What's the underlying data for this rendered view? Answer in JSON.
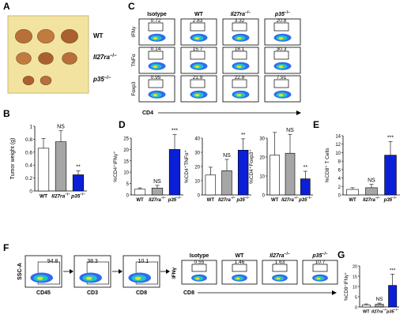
{
  "panels": {
    "A": {
      "letter": "A",
      "row_labels": [
        "WT",
        "Il27ra",
        "p35"
      ],
      "superscript": "−/−",
      "tumor_colors": [
        "#b8703a",
        "#c27b3f",
        "#a8612f"
      ]
    },
    "B": {
      "letter": "B",
      "ylabel": "Tumor weight (g)",
      "yticks": [
        "0",
        "0.2",
        "0.4",
        "0.6",
        "0.8",
        "1"
      ],
      "categories": [
        "WT",
        "Il27ra",
        "p35"
      ],
      "superscript": "−/−",
      "annotations": [
        "NS",
        "**"
      ]
    },
    "C": {
      "letter": "C",
      "col_headers": [
        "Isotype",
        "WT",
        "Il27ra",
        "p35"
      ],
      "superscript": "−/−",
      "row_labels": [
        "IFNγ",
        "TNFα",
        "Foxp3"
      ],
      "values": [
        [
          "0.72",
          "2.83",
          "3.32",
          "20.8"
        ],
        [
          "0.14",
          "15.7",
          "18.1",
          "30.3"
        ],
        [
          "0.95",
          "21.9",
          "22.8",
          "7.91"
        ]
      ],
      "xlabel": "CD4"
    },
    "D": {
      "letter": "D",
      "charts": [
        {
          "ylabel": "%CD4⁺IFNγ⁺",
          "yticks": [
            "0",
            "5",
            "10",
            "15",
            "20",
            "25"
          ],
          "annotations": [
            "NS",
            "***"
          ]
        },
        {
          "ylabel": "%CD4⁺TNFα⁺",
          "yticks": [
            "0",
            "10",
            "20",
            "30",
            "40"
          ],
          "annotations": [
            "NS",
            "**"
          ]
        },
        {
          "ylabel": "%CD4⁺Foxp3⁺",
          "yticks": [
            "0",
            "10",
            "20",
            "30"
          ],
          "annotations": [
            "NS",
            "**"
          ]
        }
      ],
      "categories": [
        "WT",
        "Il27ra",
        "p35"
      ],
      "superscript": "−/−"
    },
    "E": {
      "letter": "E",
      "ylabel": "%CD8⁺ T Cells",
      "yticks": [
        "0",
        "2",
        "4",
        "6",
        "8",
        "10",
        "12",
        "14"
      ],
      "categories": [
        "WT",
        "Il27ra",
        "p35"
      ],
      "superscript": "−/−",
      "annotations": [
        "NS",
        "***"
      ]
    },
    "F": {
      "letter": "F",
      "gating": [
        {
          "ylabel": "SSC-A",
          "xlabel": "CD45",
          "value": "94.8"
        },
        {
          "ylabel": "",
          "xlabel": "CD3",
          "value": "38.3"
        },
        {
          "ylabel": "",
          "xlabel": "CD8",
          "value": "10.1"
        }
      ],
      "ifn_label": "IFNγ",
      "col_headers": [
        "Isotype",
        "WT",
        "Il27ra",
        "p35"
      ],
      "superscript": "−/−",
      "values": [
        "0.55",
        "1.46",
        "1.63",
        "10.7"
      ],
      "xlabel": "CD8"
    },
    "G": {
      "letter": "G",
      "ylabel": "%CD8⁺IFNγ⁺",
      "yticks": [
        "0",
        "5",
        "10",
        "15",
        "20"
      ],
      "categories": [
        "WT",
        "Il27ra",
        "p35"
      ],
      "superscript": "−/−",
      "annotations": [
        "NS",
        "***"
      ]
    }
  },
  "colors": {
    "wt": "#ffffff",
    "il27ra": "#a6a6a6",
    "p35": "#0b1fd6",
    "contour_outer": "#2f6cf0",
    "contour_mid": "#22c4c4",
    "contour_inner": "#e8e020"
  },
  "chart_data": [
    {
      "type": "bar",
      "panel": "B",
      "ylabel": "Tumor weight (g)",
      "categories": [
        "WT",
        "Il27ra−/−",
        "p35−/−"
      ],
      "values": [
        0.66,
        0.76,
        0.25
      ],
      "errors": [
        0.15,
        0.17,
        0.06
      ],
      "ylim": [
        0,
        1
      ]
    },
    {
      "type": "bar",
      "panel": "D1",
      "ylabel": "%CD4⁺IFNγ⁺",
      "categories": [
        "WT",
        "Il27ra−/−",
        "p35−/−"
      ],
      "values": [
        2.5,
        3.0,
        20.0
      ],
      "errors": [
        0.6,
        1.2,
        6.5
      ],
      "ylim": [
        0,
        25
      ]
    },
    {
      "type": "bar",
      "panel": "D2",
      "ylabel": "%CD4⁺TNFα⁺",
      "categories": [
        "WT",
        "Il27ra−/−",
        "p35−/−"
      ],
      "values": [
        14,
        17,
        31.5
      ],
      "errors": [
        5.5,
        8,
        8
      ],
      "ylim": [
        0,
        40
      ]
    },
    {
      "type": "bar",
      "panel": "D3",
      "ylabel": "%CD4⁺Foxp3⁺",
      "categories": [
        "WT",
        "Il27ra−/−",
        "p35−/−"
      ],
      "values": [
        21,
        22,
        8.5
      ],
      "errors": [
        12,
        10,
        4
      ],
      "ylim": [
        0,
        30
      ]
    },
    {
      "type": "bar",
      "panel": "E",
      "ylabel": "%CD8⁺ T Cells",
      "categories": [
        "WT",
        "Il27ra−/−",
        "p35−/−"
      ],
      "values": [
        1.3,
        1.7,
        9.4
      ],
      "errors": [
        0.4,
        0.8,
        3.2
      ],
      "ylim": [
        0,
        14
      ]
    },
    {
      "type": "bar",
      "panel": "G",
      "ylabel": "%CD8⁺IFNγ⁺",
      "categories": [
        "WT",
        "Il27ra−/−",
        "p35−/−"
      ],
      "values": [
        1.0,
        1.3,
        10.5
      ],
      "errors": [
        0.5,
        0.6,
        5.5
      ],
      "ylim": [
        0,
        20
      ]
    }
  ]
}
